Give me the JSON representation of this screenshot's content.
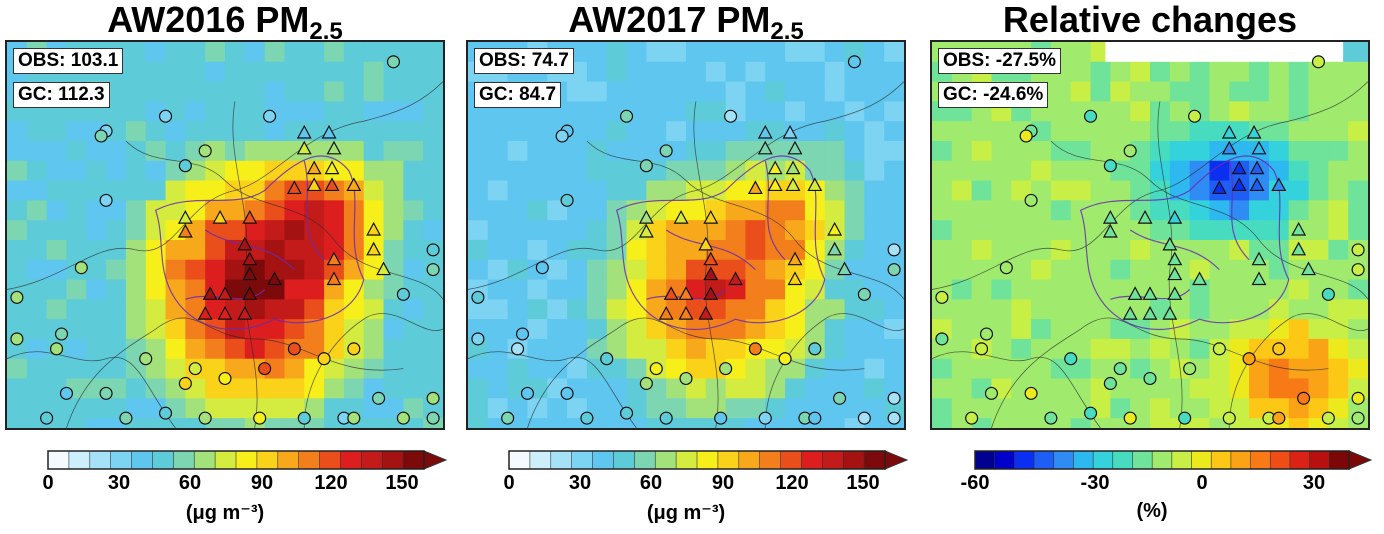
{
  "panels": [
    {
      "title": "AW2016 PM",
      "title_sub": "2.5",
      "obs": "OBS: 103.1",
      "gc": "GC: 112.3",
      "colorbar": {
        "ticks": [
          "0",
          "30",
          "60",
          "90",
          "120",
          "150"
        ],
        "unit": "(μg m⁻³)",
        "colors": [
          "#f4fbfe",
          "#cdeefb",
          "#a5e1f7",
          "#7dd3f2",
          "#5ec6ef",
          "#5ecbd9",
          "#7bd6b1",
          "#a3e17b",
          "#d4ec3f",
          "#f7ef1a",
          "#fbd21a",
          "#f8a81b",
          "#f27e1c",
          "#ea4e1b",
          "#dd1e1e",
          "#c31a1a",
          "#a41212",
          "#7d0a0a"
        ]
      }
    },
    {
      "title": "AW2017 PM",
      "title_sub": "2.5",
      "obs": "OBS: 74.7",
      "gc": "GC: 84.7",
      "colorbar": {
        "ticks": [
          "0",
          "30",
          "60",
          "90",
          "120",
          "150"
        ],
        "unit": "(μg m⁻³)",
        "colors": [
          "#f4fbfe",
          "#cdeefb",
          "#a5e1f7",
          "#7dd3f2",
          "#5ec6ef",
          "#5ecbd9",
          "#7bd6b1",
          "#a3e17b",
          "#d4ec3f",
          "#f7ef1a",
          "#fbd21a",
          "#f8a81b",
          "#f27e1c",
          "#ea4e1b",
          "#dd1e1e",
          "#c31a1a",
          "#a41212",
          "#7d0a0a"
        ]
      }
    },
    {
      "title": "Relative changes",
      "title_sub": "",
      "obs": "OBS: -27.5%",
      "gc": "GC: -24.6%",
      "colorbar": {
        "ticks": [
          "-60",
          "-30",
          "0",
          "30"
        ],
        "unit": "(%)",
        "colors": [
          "#00008f",
          "#0000c8",
          "#0b2ff0",
          "#1f5ef5",
          "#2f8cf5",
          "#2db8f0",
          "#33d2dd",
          "#47dcc0",
          "#6fe39a",
          "#a0eb6d",
          "#c8ef45",
          "#ecea1c",
          "#fcc815",
          "#fba316",
          "#f87a17",
          "#ef4d16",
          "#dc2215",
          "#b8100f",
          "#7d0606"
        ]
      }
    }
  ]
}
